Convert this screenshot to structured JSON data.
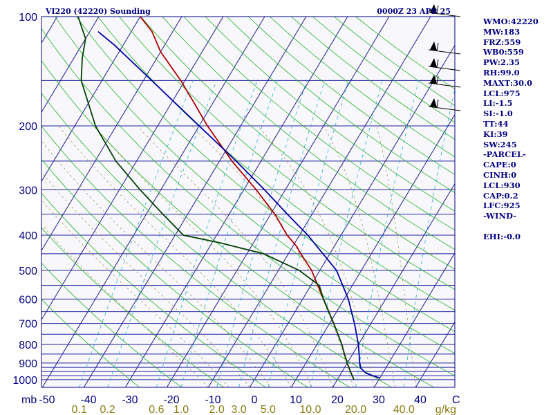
{
  "header": {
    "station": "VI220 (42220) Sounding",
    "time": "0000Z 23 APR 25"
  },
  "indices": [
    "WMO:42220",
    "MW:183",
    "FRZ:559",
    "WB0:559",
    "PW:2.35",
    "RH:99.0",
    "MAXT:30.0",
    "LCL:975",
    "LI:-1.5",
    "SI:-1.0",
    "TT:44",
    "KI:39",
    "SW:245",
    "-PARCEL-",
    "CAPE:0",
    "CINH:0",
    "LCL:930",
    "CAP:0.2",
    "LFC:925",
    "-WIND-",
    "",
    "EHI:-0.0"
  ],
  "axis_units": {
    "pressure": "mb",
    "mixing_ratio": "g/kg",
    "temperature_end": "C"
  },
  "chart_data": {
    "type": "line",
    "title": "VI220 (42220) Sounding",
    "xlabel": "",
    "ylabel": "mb",
    "xlim": [
      -50,
      50
    ],
    "ylim": [
      1000,
      100
    ],
    "y_log_scale": true,
    "skew_t": true,
    "pressure_levels": [
      100,
      200,
      300,
      400,
      500,
      600,
      700,
      800,
      900,
      1000
    ],
    "pressure_tick_labels": [
      "100",
      "200",
      "300",
      "400",
      "500",
      "600",
      "700",
      "800",
      "900",
      "1000"
    ],
    "temperature_ticks": [
      -50,
      -40,
      -30,
      -20,
      -10,
      0,
      10,
      20,
      30,
      40
    ],
    "temperature_tick_labels": [
      "-50",
      "-40",
      "-30",
      "-20",
      "-10",
      "0",
      "10",
      "20",
      "30",
      "40"
    ],
    "mixing_ratio_ticks": [
      0.1,
      0.2,
      0.6,
      1.0,
      2.0,
      3.0,
      5.0,
      10.0,
      20.0,
      40.0
    ],
    "mixing_ratio_tick_labels": [
      "0.1",
      "0.2",
      "0.6",
      "1.0",
      "2.0",
      "3.0",
      "5.0",
      "10.0",
      "20.0",
      "40.0"
    ],
    "series": [
      {
        "color": "#b00000",
        "points": [
          [
            1000,
            24
          ],
          [
            950,
            22
          ],
          [
            900,
            20
          ],
          [
            850,
            18
          ],
          [
            800,
            16
          ],
          [
            700,
            11
          ],
          [
            600,
            5
          ],
          [
            500,
            -2
          ],
          [
            450,
            -7
          ],
          [
            430,
            -9
          ],
          [
            400,
            -13
          ],
          [
            350,
            -19
          ],
          [
            300,
            -27
          ],
          [
            250,
            -37
          ],
          [
            200,
            -48
          ],
          [
            175,
            -54
          ],
          [
            150,
            -61
          ],
          [
            125,
            -70
          ],
          [
            110,
            -75
          ],
          [
            100,
            -80
          ]
        ]
      },
      {
        "color": "#004000",
        "points": [
          [
            1000,
            24
          ],
          [
            950,
            22
          ],
          [
            900,
            20
          ],
          [
            850,
            18
          ],
          [
            800,
            16
          ],
          [
            700,
            11
          ],
          [
            600,
            5
          ],
          [
            550,
            2
          ],
          [
            500,
            -5
          ],
          [
            450,
            -16
          ],
          [
            420,
            -28
          ],
          [
            400,
            -38
          ],
          [
            350,
            -46
          ],
          [
            300,
            -55
          ],
          [
            250,
            -65
          ],
          [
            200,
            -75
          ],
          [
            150,
            -85
          ],
          [
            130,
            -88
          ],
          [
            115,
            -90
          ],
          [
            100,
            -95
          ]
        ]
      },
      {
        "color": "#0000a0",
        "points": [
          [
            990,
            30
          ],
          [
            960,
            26
          ],
          [
            930,
            24
          ],
          [
            900,
            23
          ],
          [
            800,
            20
          ],
          [
            700,
            16
          ],
          [
            600,
            11
          ],
          [
            500,
            4
          ],
          [
            400,
            -8
          ],
          [
            350,
            -16
          ],
          [
            300,
            -25
          ],
          [
            250,
            -36
          ],
          [
            200,
            -50
          ],
          [
            150,
            -68
          ],
          [
            120,
            -82
          ],
          [
            110,
            -88
          ]
        ]
      }
    ]
  }
}
